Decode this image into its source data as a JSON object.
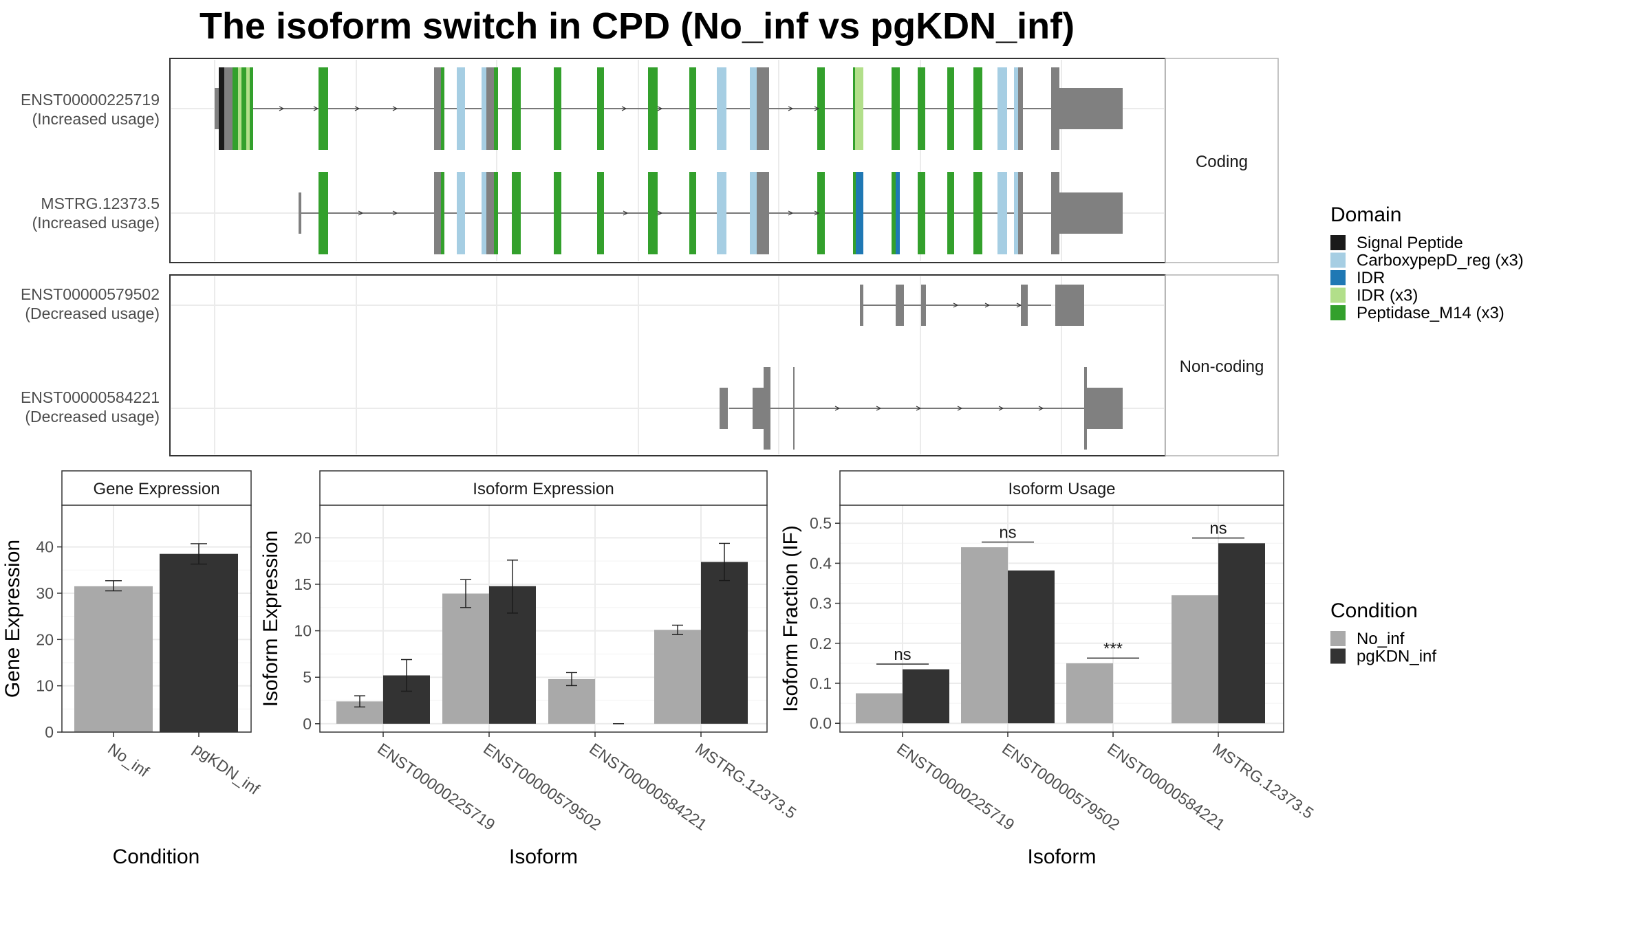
{
  "title": "The isoform switch in CPD (No_inf vs pgKDN_inf)",
  "colors": {
    "signal_peptide": "#1a1a1a",
    "carboxypep_reg": "#a6cee3",
    "idr": "#1f78b4",
    "idr_x3": "#b2df8a",
    "peptidase_m14": "#33a02c",
    "exon": "#808080",
    "no_inf": "#a9a9a9",
    "pgkdn_inf": "#333333"
  },
  "domain_legend": {
    "title": "Domain",
    "items": [
      {
        "label": "Signal Peptide",
        "color": "#1a1a1a"
      },
      {
        "label": "CarboxypepD_reg (x3)",
        "color": "#a6cee3"
      },
      {
        "label": "IDR",
        "color": "#1f78b4"
      },
      {
        "label": "IDR (x3)",
        "color": "#b2df8a"
      },
      {
        "label": "Peptidase_M14 (x3)",
        "color": "#33a02c"
      }
    ]
  },
  "condition_legend": {
    "title": "Condition",
    "items": [
      {
        "label": "No_inf",
        "color": "#a9a9a9"
      },
      {
        "label": "pgKDN_inf",
        "color": "#333333"
      }
    ]
  },
  "structure": {
    "panels": [
      {
        "strip": "Coding",
        "isoforms": [
          {
            "id": "ENST00000225719",
            "usage": "(Increased usage)"
          },
          {
            "id": "MSTRG.12373.5",
            "usage": "(Increased usage)"
          }
        ]
      },
      {
        "strip": "Non-coding",
        "isoforms": [
          {
            "id": "ENST00000579502",
            "usage": "(Decreased usage)"
          },
          {
            "id": "ENST00000584221",
            "usage": "(Decreased usage)"
          }
        ]
      }
    ]
  },
  "chart_data": [
    {
      "type": "bar",
      "strip": "Gene Expression",
      "xlabel": "Condition",
      "ylabel": "Gene Expression",
      "categories": [
        "No_inf",
        "pgKDN_inf"
      ],
      "values": [
        31.5,
        38.5
      ],
      "errors": [
        [
          30.5,
          32.7
        ],
        [
          36.3,
          40.7
        ]
      ],
      "ylim": [
        0,
        49
      ],
      "yticks": [
        0,
        10,
        20,
        30,
        40
      ]
    },
    {
      "type": "bar",
      "strip": "Isoform Expression",
      "xlabel": "Isoform",
      "ylabel": "Isoform Expression",
      "categories": [
        "ENST00000225719",
        "ENST00000579502",
        "ENST00000584221",
        "MSTRG.12373.5"
      ],
      "series": [
        {
          "name": "No_inf",
          "values": [
            2.4,
            14.0,
            4.8,
            10.1
          ],
          "errors": [
            [
              1.8,
              3.0
            ],
            [
              12.5,
              15.5
            ],
            [
              4.1,
              5.5
            ],
            [
              9.6,
              10.6
            ]
          ]
        },
        {
          "name": "pgKDN_inf",
          "values": [
            5.2,
            14.8,
            0.0,
            17.4
          ],
          "errors": [
            [
              3.5,
              6.9
            ],
            [
              11.9,
              17.6
            ],
            [
              0.0,
              0.0
            ],
            [
              15.4,
              19.4
            ]
          ]
        }
      ],
      "ylim": [
        -0.9,
        23.5
      ],
      "yticks": [
        0,
        5,
        10,
        15,
        20
      ]
    },
    {
      "type": "bar",
      "strip": "Isoform Usage",
      "xlabel": "Isoform",
      "ylabel": "Isoform Fraction (IF)",
      "categories": [
        "ENST00000225719",
        "ENST00000579502",
        "ENST00000584221",
        "MSTRG.12373.5"
      ],
      "series": [
        {
          "name": "No_inf",
          "values": [
            0.075,
            0.44,
            0.15,
            0.32
          ]
        },
        {
          "name": "pgKDN_inf",
          "values": [
            0.135,
            0.382,
            0.0,
            0.45
          ]
        }
      ],
      "significance": [
        "ns",
        "ns",
        "***",
        "ns"
      ],
      "ylim": [
        -0.022,
        0.545
      ],
      "yticks": [
        0.0,
        0.1,
        0.2,
        0.3,
        0.4,
        0.5
      ],
      "ytick_labels": [
        "0.0",
        "0.1",
        "0.2",
        "0.3",
        "0.4",
        "0.5"
      ]
    }
  ]
}
